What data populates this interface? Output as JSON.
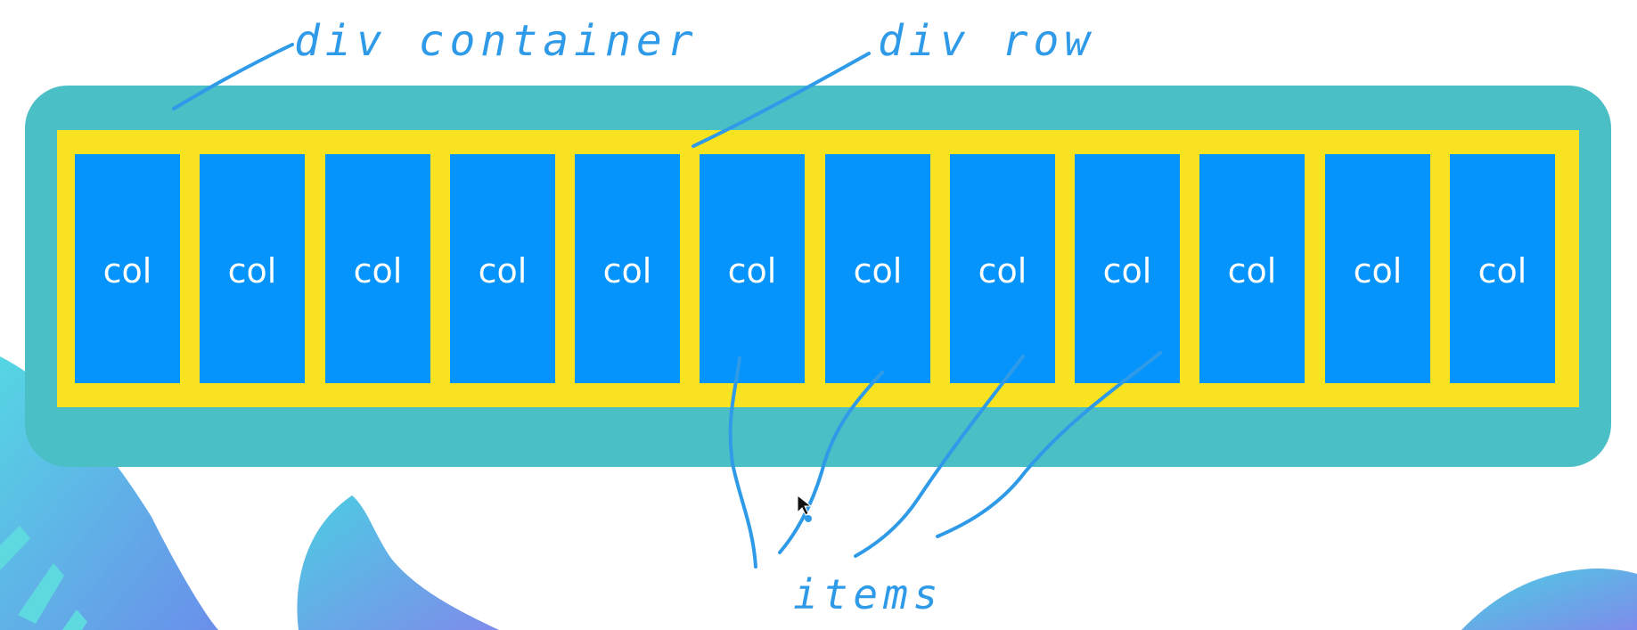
{
  "annotations": {
    "container": "div container",
    "row": "div row",
    "items": "items"
  },
  "columns": [
    "col",
    "col",
    "col",
    "col",
    "col",
    "col",
    "col",
    "col",
    "col",
    "col",
    "col",
    "col"
  ],
  "colors": {
    "container": "#4ABFC6",
    "row": "#F9E21F",
    "col": "#0494FB",
    "ink": "#2F9BE8"
  }
}
